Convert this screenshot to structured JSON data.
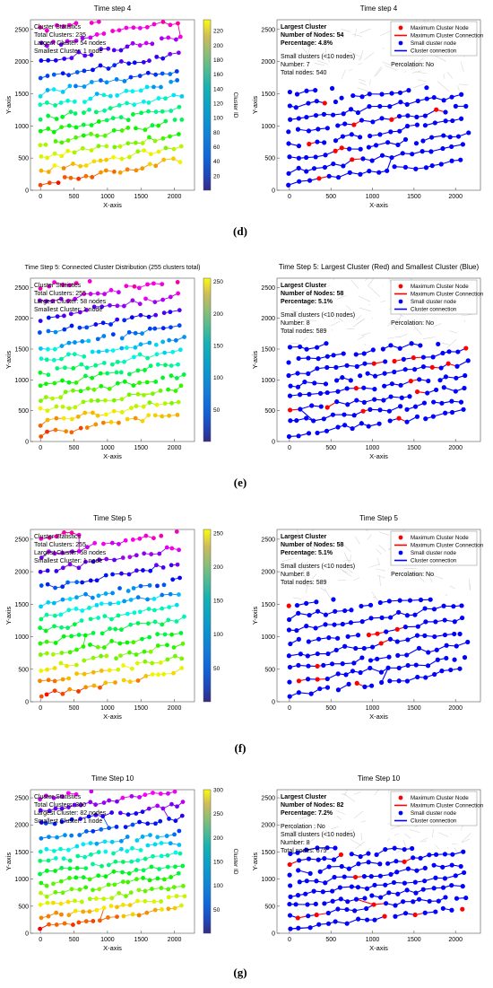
{
  "rows": [
    {
      "label": "(d)",
      "charts": [
        {
          "type": "scatter",
          "title": "Time step 4",
          "xlabel": "X-axis",
          "ylabel": "Y-axis",
          "xlim": [
            -150,
            2300
          ],
          "ylim": [
            0,
            2650
          ],
          "xticks": [
            "0",
            "500",
            "1000",
            "1500",
            "2000"
          ],
          "yticks": [
            "0",
            "500",
            "1000",
            "1500",
            "2000",
            "2500"
          ],
          "grid": false,
          "color_mode": "cluster_id",
          "colorbar": {
            "label": "Cluster ID",
            "min": 0,
            "max": 235,
            "ticks": [
              "20",
              "40",
              "60",
              "80",
              "100",
              "120",
              "140",
              "160",
              "180",
              "200",
              "220"
            ]
          },
          "annotations": [
            "Cluster Statistics",
            "Total Clusters: 235",
            "Largest Cluster: 54 nodes",
            "Smallest Cluster: 1 node"
          ]
        },
        {
          "type": "scatter",
          "title": "Time step 4",
          "xlabel": "X-axis",
          "ylabel": "Y-axis",
          "xlim": [
            -150,
            2300
          ],
          "ylim": [
            0,
            2650
          ],
          "xticks": [
            "0",
            "500",
            "1000",
            "1500",
            "2000"
          ],
          "yticks": [
            "0",
            "500",
            "1000",
            "1500",
            "2000",
            "2500"
          ],
          "grid": false,
          "color_mode": "largest_vs_small",
          "colors": {
            "largest": "#ff0000",
            "small": "#0000ff"
          },
          "legend": {
            "placement": "top-right",
            "entries": [
              "Maximum Cluster Node",
              "Maximum Cluster Connection",
              "Small cluster node",
              "Cluster connection"
            ]
          },
          "annotations_bold": [
            "Largest Cluster",
            "Number of Nodes: 54",
            "Percentage: 4.8%"
          ],
          "annotations": [
            "Small clusters (<10 nodes)",
            "Number: 7",
            "Total nodes: 540",
            "Percolation: No"
          ]
        }
      ]
    },
    {
      "label": "(e)",
      "charts": [
        {
          "type": "scatter",
          "title": "Time Step 5: Connected Cluster Distribution (255 clusters total)",
          "xlabel": "X-axis",
          "ylabel": "Y-axis",
          "xlim": [
            -150,
            2300
          ],
          "ylim": [
            0,
            2650
          ],
          "xticks": [
            "0",
            "500",
            "1000",
            "1500",
            "2000"
          ],
          "yticks": [
            "0",
            "500",
            "1000",
            "1500",
            "2000",
            "2500"
          ],
          "grid": false,
          "color_mode": "cluster_id",
          "colorbar": {
            "label": "",
            "min": 0,
            "max": 255,
            "ticks": [
              "50",
              "100",
              "150",
              "200",
              "250"
            ]
          },
          "annotations": [
            "Cluster Statistics",
            "Total Clusters: 255",
            "Largest Cluster: 58 nodes",
            "Smallest Cluster: 1 node"
          ]
        },
        {
          "type": "scatter",
          "title": "Time Step 5: Largest Cluster (Red) and Smallest Cluster (Blue)",
          "xlabel": "X-axis",
          "ylabel": "Y-axis",
          "xlim": [
            -150,
            2300
          ],
          "ylim": [
            0,
            2650
          ],
          "xticks": [
            "0",
            "500",
            "1000",
            "1500",
            "2000"
          ],
          "yticks": [
            "0",
            "500",
            "1000",
            "1500",
            "2000",
            "2500"
          ],
          "grid": false,
          "color_mode": "largest_vs_small",
          "colors": {
            "largest": "#ff0000",
            "small": "#0000ff"
          },
          "legend": {
            "placement": "top-right",
            "entries": [
              "Maximum Cluster Node",
              "Maximum Cluster Connection",
              "Small cluster node",
              "Cluster connection"
            ]
          },
          "annotations_bold": [
            "Largest Cluster",
            "Number of Nodes: 58",
            "Percentage: 5.1%"
          ],
          "annotations": [
            "Small clusters (<10 nodes)",
            "Number: 8",
            "Total nodes: 589",
            "Percolation: No"
          ]
        }
      ]
    },
    {
      "label": "(f)",
      "charts": [
        {
          "type": "scatter",
          "title": "Time Step 5",
          "xlabel": "X-axis",
          "ylabel": "Y-axis",
          "xlim": [
            -150,
            2300
          ],
          "ylim": [
            0,
            2650
          ],
          "xticks": [
            "0",
            "500",
            "1000",
            "1500",
            "2000"
          ],
          "yticks": [
            "0",
            "500",
            "1000",
            "1500",
            "2000",
            "2500"
          ],
          "grid": false,
          "color_mode": "cluster_id",
          "colorbar": {
            "label": "",
            "min": 0,
            "max": 255,
            "ticks": [
              "50",
              "100",
              "150",
              "200",
              "250"
            ]
          },
          "annotations": [
            "Cluster Statistics",
            "Total Clusters: 255",
            "Largest Cluster: 58 nodes",
            "Smallest Cluster: 1 node"
          ]
        },
        {
          "type": "scatter",
          "title": "Time Step 5",
          "xlabel": "X-axis",
          "ylabel": "Y-axis",
          "xlim": [
            -150,
            2300
          ],
          "ylim": [
            0,
            2650
          ],
          "xticks": [
            "0",
            "500",
            "1000",
            "1500",
            "2000"
          ],
          "yticks": [
            "0",
            "500",
            "1000",
            "1500",
            "2000",
            "2500"
          ],
          "grid": false,
          "color_mode": "largest_vs_small",
          "colors": {
            "largest": "#ff0000",
            "small": "#0000ff"
          },
          "legend": {
            "placement": "top-right",
            "entries": [
              "Maximum Cluster Node",
              "Maximum Cluster Connection",
              "Small cluster node",
              "Cluster connection"
            ]
          },
          "annotations_bold": [
            "Largest Cluster",
            "Number of Nodes: 58",
            "Percentage: 5.1%"
          ],
          "annotations": [
            "Small clusters (<10 nodes)",
            "Number: 8",
            "Total nodes: 589",
            "Percolation: No"
          ]
        }
      ]
    },
    {
      "label": "(g)",
      "charts": [
        {
          "type": "scatter",
          "title": "Time Step 10",
          "xlabel": "X-axis",
          "ylabel": "Y-axis",
          "xlim": [
            -150,
            2300
          ],
          "ylim": [
            0,
            2650
          ],
          "xticks": [
            "0",
            "500",
            "1000",
            "1500",
            "2000"
          ],
          "yticks": [
            "0",
            "500",
            "1000",
            "1500",
            "2000",
            "2500"
          ],
          "grid": false,
          "color_mode": "cluster_id",
          "colorbar": {
            "label": "Cluster ID",
            "min": 0,
            "max": 300,
            "ticks": [
              "50",
              "100",
              "150",
              "200",
              "250",
              "300"
            ]
          },
          "annotations": [
            "Cluster Statistics",
            "Total Clusters: 300",
            "Largest Cluster: 82 nodes",
            "Smallest Cluster: 1 node"
          ]
        },
        {
          "type": "scatter",
          "title": "Time Step 10",
          "xlabel": "X-axis",
          "ylabel": "Y-axis",
          "xlim": [
            -150,
            2300
          ],
          "ylim": [
            0,
            2650
          ],
          "xticks": [
            "0",
            "500",
            "1000",
            "1500",
            "2000"
          ],
          "yticks": [
            "0",
            "500",
            "1000",
            "1500",
            "2000",
            "2500"
          ],
          "grid": false,
          "color_mode": "largest_vs_small",
          "colors": {
            "largest": "#ff0000",
            "small": "#0000ff"
          },
          "legend": {
            "placement": "top-right",
            "entries": [
              "Maximum Cluster Node",
              "Maximum Cluster Connection",
              "Small cluster node",
              "Cluster connection"
            ]
          },
          "annotations_bold": [
            "Largest Cluster",
            "Number of Nodes: 82",
            "Percentage: 7.2%"
          ],
          "annotations": [
            "Percolation : No",
            "Small clusters (<10 nodes)",
            "Number: 8",
            "Total nodes: 675"
          ]
        }
      ]
    }
  ]
}
